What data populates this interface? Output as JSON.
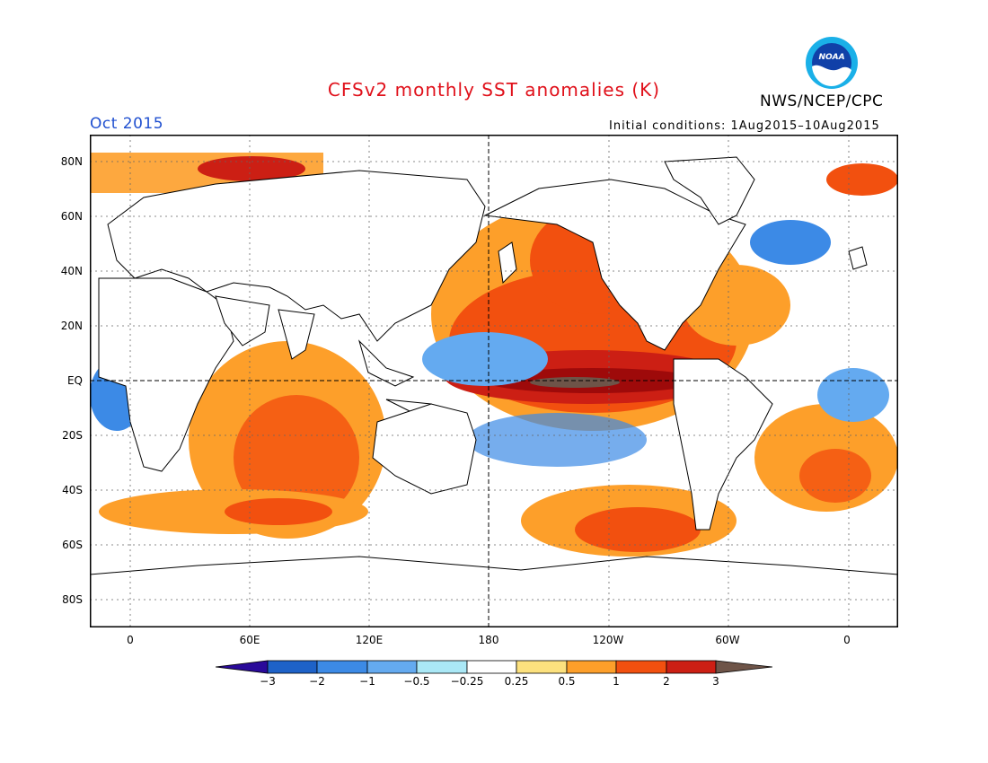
{
  "header": {
    "title": "CFSv2 monthly SST anomalies (K)",
    "agency": "NWS/NCEP/CPC",
    "logo_text": "NOAA",
    "period": "Oct 2015",
    "initial_conditions": "Initial conditions: 1Aug2015–10Aug2015"
  },
  "axes": {
    "lat_labels": [
      "80N",
      "60N",
      "40N",
      "20N",
      "EQ",
      "20S",
      "40S",
      "60S",
      "80S"
    ],
    "lon_labels": [
      "0",
      "60E",
      "120E",
      "180",
      "120W",
      "60W",
      "0"
    ]
  },
  "colorbar": {
    "labels": [
      "−3",
      "−2",
      "−1",
      "−0.5",
      "−0.25",
      "0.25",
      "0.5",
      "1",
      "2",
      "3"
    ],
    "colors": [
      "#2a0a9a",
      "#1e62c8",
      "#3c8ae6",
      "#64aaf0",
      "#aae8f6",
      "#ffffff",
      "#fce17e",
      "#fd9f2a",
      "#f2500f",
      "#cc1f14",
      "#9e0a0a",
      "#6e5448"
    ]
  },
  "colors": {
    "title": "#e0101a",
    "period": "#2050d0",
    "land": "#ffffff",
    "grid": "#666666"
  }
}
